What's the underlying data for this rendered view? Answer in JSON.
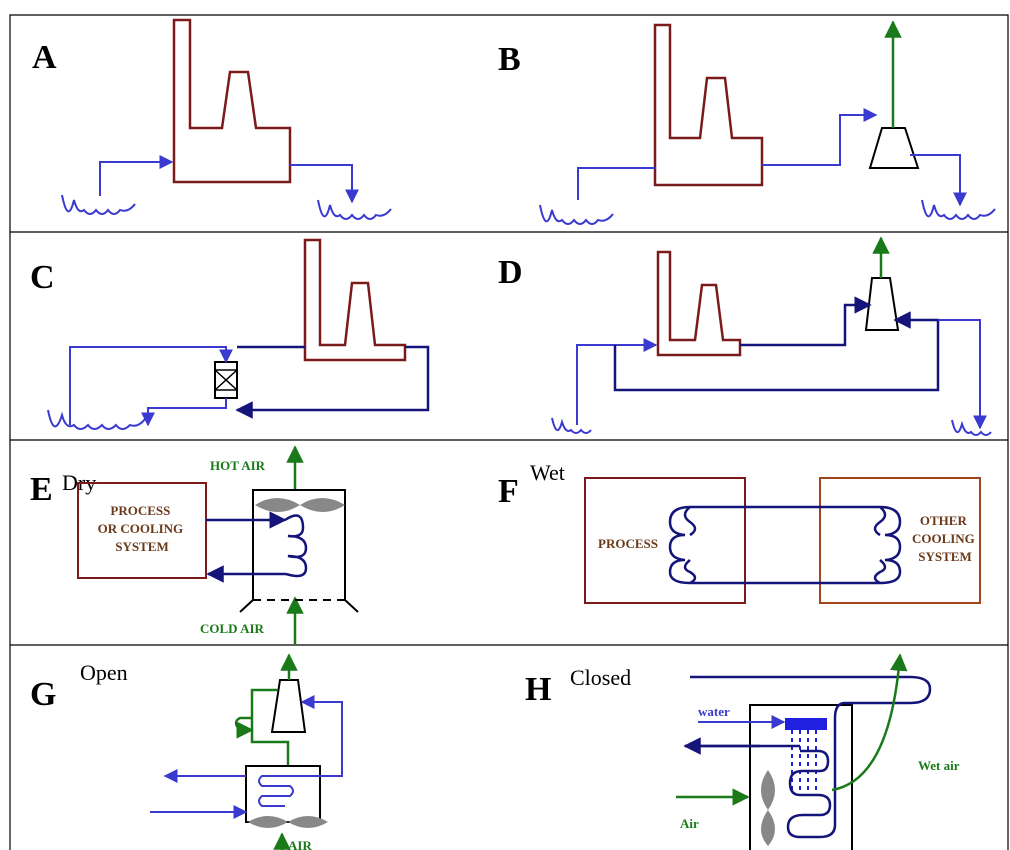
{
  "panels": {
    "A": {
      "letter": "A"
    },
    "B": {
      "letter": "B"
    },
    "C": {
      "letter": "C"
    },
    "D": {
      "letter": "D"
    },
    "E": {
      "letter": "E",
      "caption": "Dry",
      "top_label": "HOT AIR",
      "bottom_label": "COLD AIR",
      "box_lines": [
        "PROCESS",
        "OR COOLING",
        "SYSTEM"
      ]
    },
    "F": {
      "letter": "F",
      "caption": "Wet",
      "left_box": "PROCESS",
      "right_box_lines": [
        "OTHER",
        "COOLING",
        "SYSTEM"
      ]
    },
    "G": {
      "letter": "G",
      "caption": "Open",
      "bottom_label": "AIR"
    },
    "H": {
      "letter": "H",
      "caption": "Closed",
      "water_label": "water",
      "air_label": "Air",
      "wet_air_label": "Wet air"
    }
  }
}
